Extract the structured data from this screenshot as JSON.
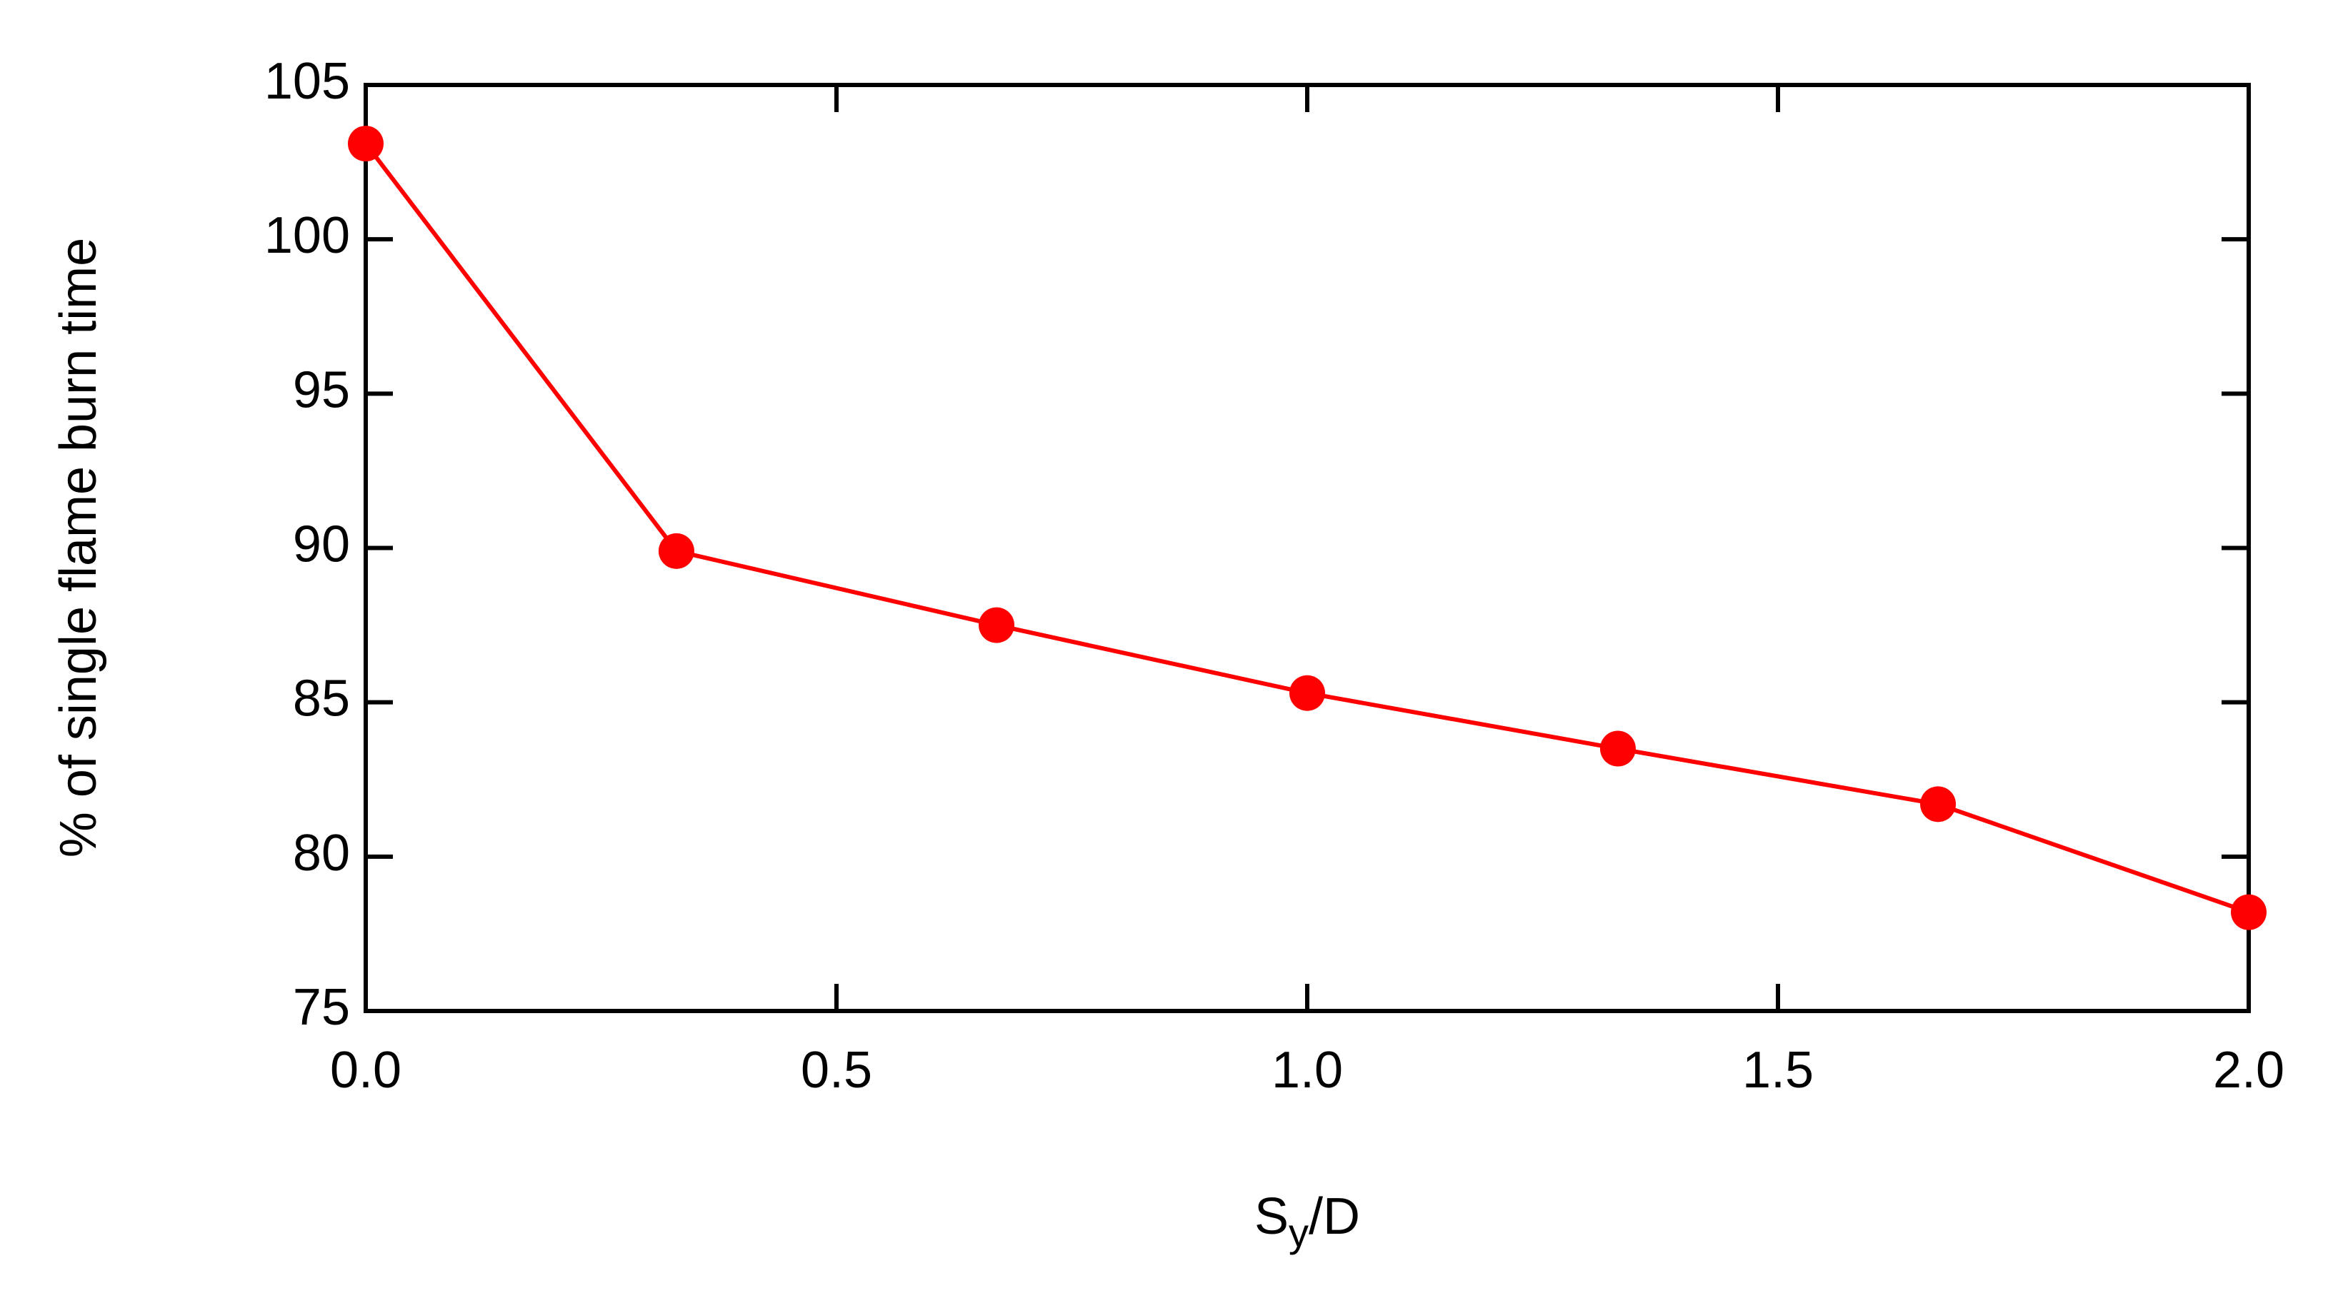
{
  "chart_data": {
    "type": "line",
    "x_label": {
      "main": "S",
      "subscript": "y",
      "rest": "/D"
    },
    "y_label": "% of single flame burn time",
    "x": [
      0,
      0.33,
      0.67,
      1,
      1.33,
      1.67,
      2
    ],
    "series": [
      {
        "color": "#ff0000",
        "values": [
          103.1,
          89.9,
          87.5,
          85.3,
          83.5,
          81.7,
          78.2
        ]
      }
    ],
    "xlim": [
      0,
      2
    ],
    "xticks": [
      {
        "value": 0,
        "label": "0.0"
      },
      {
        "value": 0.5,
        "label": "0.5"
      },
      {
        "value": 1,
        "label": "1.0"
      },
      {
        "value": 1.5,
        "label": "1.5"
      },
      {
        "value": 2,
        "label": "2.0"
      }
    ],
    "ylim": [
      75,
      105
    ],
    "yticks": [
      75,
      80,
      85,
      90,
      95,
      100,
      105
    ],
    "grid": false
  }
}
